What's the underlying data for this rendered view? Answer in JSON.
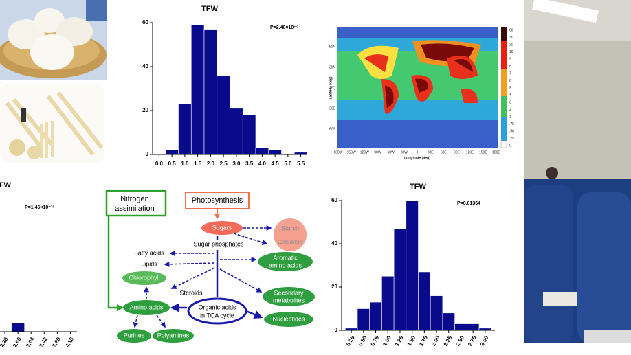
{
  "chart_data": [
    {
      "type": "histogram",
      "title": "TFW",
      "annotation": "P=2.46×10⁻⁶",
      "bins": [
        0.25,
        0.75,
        1.25,
        1.75,
        2.25,
        2.75,
        3.25,
        3.75,
        4.25,
        4.75,
        5.25,
        5.75
      ],
      "values": [
        2,
        23,
        59,
        57,
        36,
        21,
        18,
        3,
        2,
        0,
        1
      ],
      "color": "#0a0a8c",
      "xlim": [
        -0.25,
        5.75
      ],
      "ylim": [
        0,
        60
      ],
      "xticks": [
        {
          "value": 0,
          "label": "0.0"
        },
        0.5,
        {
          "value": 1,
          "label": "1.0"
        },
        1.5,
        {
          "value": 2,
          "label": "2.0"
        },
        2.5,
        {
          "value": 3,
          "label": "3.0"
        },
        3.5,
        {
          "value": 4,
          "label": "4.0"
        },
        4.5,
        {
          "value": 5,
          "label": "5.0"
        },
        5.5
      ],
      "yticks": [
        0,
        20,
        40,
        60
      ],
      "rotated_xticks": false
    },
    {
      "type": "histogram",
      "title": "TFW",
      "annotation": "P=1.46×10⁻¹⁵",
      "bins": [
        2.09,
        2.47,
        2.85,
        3.23,
        3.61,
        3.99,
        4.37
      ],
      "values": [
        0,
        4,
        0,
        0,
        0,
        0
      ],
      "color": "#0a0a8c",
      "xlim": [
        2.14,
        4.37
      ],
      "ylim": [
        0,
        60
      ],
      "xticks": [
        2.28,
        2.66,
        3.04,
        3.42,
        {
          "value": 3.8,
          "label": "3.80"
        },
        4.18
      ],
      "rotated_xticks": true
    },
    {
      "type": "histogram",
      "title": "TFW",
      "annotation": "P=0.01364",
      "bins": [
        0.125,
        0.375,
        0.625,
        0.875,
        1.125,
        1.375,
        1.625,
        1.875,
        2.125,
        2.375,
        2.625,
        2.875,
        3.125
      ],
      "values": [
        1,
        10,
        13,
        25,
        47,
        60,
        27,
        16,
        8,
        3,
        3,
        1
      ],
      "color": "#0a0a8c",
      "xlim": [
        0.05,
        3.2
      ],
      "ylim": [
        0,
        60
      ],
      "xticks": [
        0.25,
        {
          "value": 0.5,
          "label": "0.50"
        },
        0.75,
        {
          "value": 1,
          "label": "1.00"
        },
        1.25,
        {
          "value": 1.5,
          "label": "1.50"
        },
        1.75,
        {
          "value": 2,
          "label": "2.00"
        },
        2.25,
        {
          "value": 2.5,
          "label": "2.50"
        },
        2.75,
        {
          "value": 3,
          "label": "3.00"
        }
      ],
      "yticks": [
        0,
        20,
        40,
        60
      ],
      "rotated_xticks": true
    }
  ],
  "map": {
    "y_label": "Latitude (deg)",
    "x_label": "Longitude (deg)",
    "lat_ticks": [
      "60N",
      "30N",
      "EQ",
      "30S",
      "60S"
    ],
    "lon_ticks": [
      "180W",
      "150W",
      "120W",
      "90W",
      "60W",
      "30W",
      "0",
      "30E",
      "60E",
      "90E",
      "120E",
      "150E",
      "180E"
    ],
    "colorbar": [
      "60",
      "30",
      "20",
      "10",
      "9",
      "8",
      "7",
      "6",
      "5",
      "4",
      "3",
      "2",
      "1",
      ".75",
      ".50",
      ".25",
      "0"
    ]
  },
  "diagram": {
    "nitrogen": [
      "Nitrogen",
      "assimilation"
    ],
    "photosynthesis": "Photosynthesis",
    "sugars": "Sugars",
    "starch": "Starch",
    "cellulose": "Cellulose",
    "sugar_phosphates": "Sugar phosphates",
    "fatty_acids": "Fatty acids",
    "lipids": "Lipids",
    "aromatic": [
      "Aromatic",
      "amino acids"
    ],
    "chlorophyll": "Chlorophyll",
    "steroids": "Steroids",
    "secondary": [
      "Secondary",
      "metabolites"
    ],
    "amino_acids": "Amino acids",
    "organic": [
      "Organic acids",
      "in TCA cycle"
    ],
    "nucleotides": "Nucleotides",
    "purines": "Purines",
    "polyamines": "Polyamines"
  }
}
